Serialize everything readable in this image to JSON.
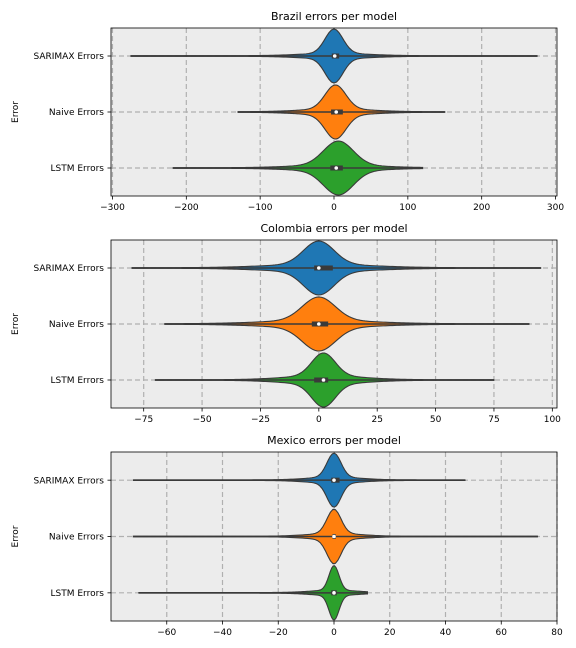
{
  "chart_data": [
    {
      "type": "violin",
      "title": "Brazil errors per model",
      "ylabel": "Error",
      "xlabel": "",
      "categories": [
        "SARIMAX Errors",
        "Naive Errors",
        "LSTM Errors"
      ],
      "xlim": [
        -302,
        302
      ],
      "xticks": [
        -300,
        -200,
        -100,
        0,
        100,
        200,
        300
      ],
      "xtick_labels": [
        "−300",
        "−200",
        "−100",
        "0",
        "100",
        "200",
        "300"
      ],
      "grid": true,
      "series": [
        {
          "category": "SARIMAX Errors",
          "color": "#1f77b4",
          "min": -275,
          "max": 275,
          "q1": -3,
          "median": 1,
          "q3": 7,
          "peak": 0,
          "core_sd": 12,
          "tail_sd": 45,
          "tail_weight": 0.1
        },
        {
          "category": "Naive Errors",
          "color": "#ff7f0e",
          "min": -130,
          "max": 150,
          "q1": -4,
          "median": 3,
          "q3": 12,
          "peak": 2,
          "core_sd": 14,
          "tail_sd": 45,
          "tail_weight": 0.12
        },
        {
          "category": "LSTM Errors",
          "color": "#2ca02c",
          "min": -218,
          "max": 120,
          "q1": -5,
          "median": 3,
          "q3": 12,
          "peak": 6,
          "core_sd": 20,
          "tail_sd": 55,
          "tail_weight": 0.12
        }
      ]
    },
    {
      "type": "violin",
      "title": "Colombia errors per model",
      "ylabel": "Error",
      "xlabel": "",
      "categories": [
        "SARIMAX Errors",
        "Naive Errors",
        "LSTM Errors"
      ],
      "xlim": [
        -89,
        102
      ],
      "xticks": [
        -75,
        -50,
        -25,
        0,
        25,
        50,
        75,
        100
      ],
      "xtick_labels": [
        "−75",
        "−50",
        "−25",
        "0",
        "25",
        "50",
        "75",
        "100"
      ],
      "grid": true,
      "series": [
        {
          "category": "SARIMAX Errors",
          "color": "#1f77b4",
          "min": -80,
          "max": 95,
          "q1": -2,
          "median": 0,
          "q3": 6,
          "peak": 0,
          "core_sd": 6.5,
          "tail_sd": 22,
          "tail_weight": 0.15
        },
        {
          "category": "Naive Errors",
          "color": "#ff7f0e",
          "min": -66,
          "max": 90,
          "q1": -3,
          "median": 0,
          "q3": 4,
          "peak": 0,
          "core_sd": 7,
          "tail_sd": 22,
          "tail_weight": 0.15
        },
        {
          "category": "LSTM Errors",
          "color": "#2ca02c",
          "min": -70,
          "max": 75,
          "q1": -2,
          "median": 2,
          "q3": 4,
          "peak": 2,
          "core_sd": 5,
          "tail_sd": 16,
          "tail_weight": 0.18
        }
      ]
    },
    {
      "type": "violin",
      "title": "Mexico errors per model",
      "ylabel": "Error",
      "xlabel": "",
      "categories": [
        "SARIMAX Errors",
        "Naive Errors",
        "LSTM Errors"
      ],
      "xlim": [
        -80,
        80
      ],
      "xticks": [
        -60,
        -40,
        -20,
        0,
        20,
        40,
        60,
        80
      ],
      "xtick_labels": [
        "−60",
        "−40",
        "−20",
        "0",
        "20",
        "40",
        "60",
        "80"
      ],
      "grid": true,
      "series": [
        {
          "category": "SARIMAX Errors",
          "color": "#1f77b4",
          "min": -72,
          "max": 47,
          "q1": -1,
          "median": 0,
          "q3": 2,
          "peak": 0,
          "core_sd": 2.5,
          "tail_sd": 9,
          "tail_weight": 0.12
        },
        {
          "category": "Naive Errors",
          "color": "#ff7f0e",
          "min": -72,
          "max": 73,
          "q1": -0.5,
          "median": 0,
          "q3": 0.5,
          "peak": 0,
          "core_sd": 2.5,
          "tail_sd": 9,
          "tail_weight": 0.12
        },
        {
          "category": "LSTM Errors",
          "color": "#2ca02c",
          "min": -70,
          "max": 12,
          "q1": -1,
          "median": 0,
          "q3": 1,
          "peak": 0,
          "core_sd": 1.8,
          "tail_sd": 8,
          "tail_weight": 0.1
        }
      ]
    }
  ]
}
